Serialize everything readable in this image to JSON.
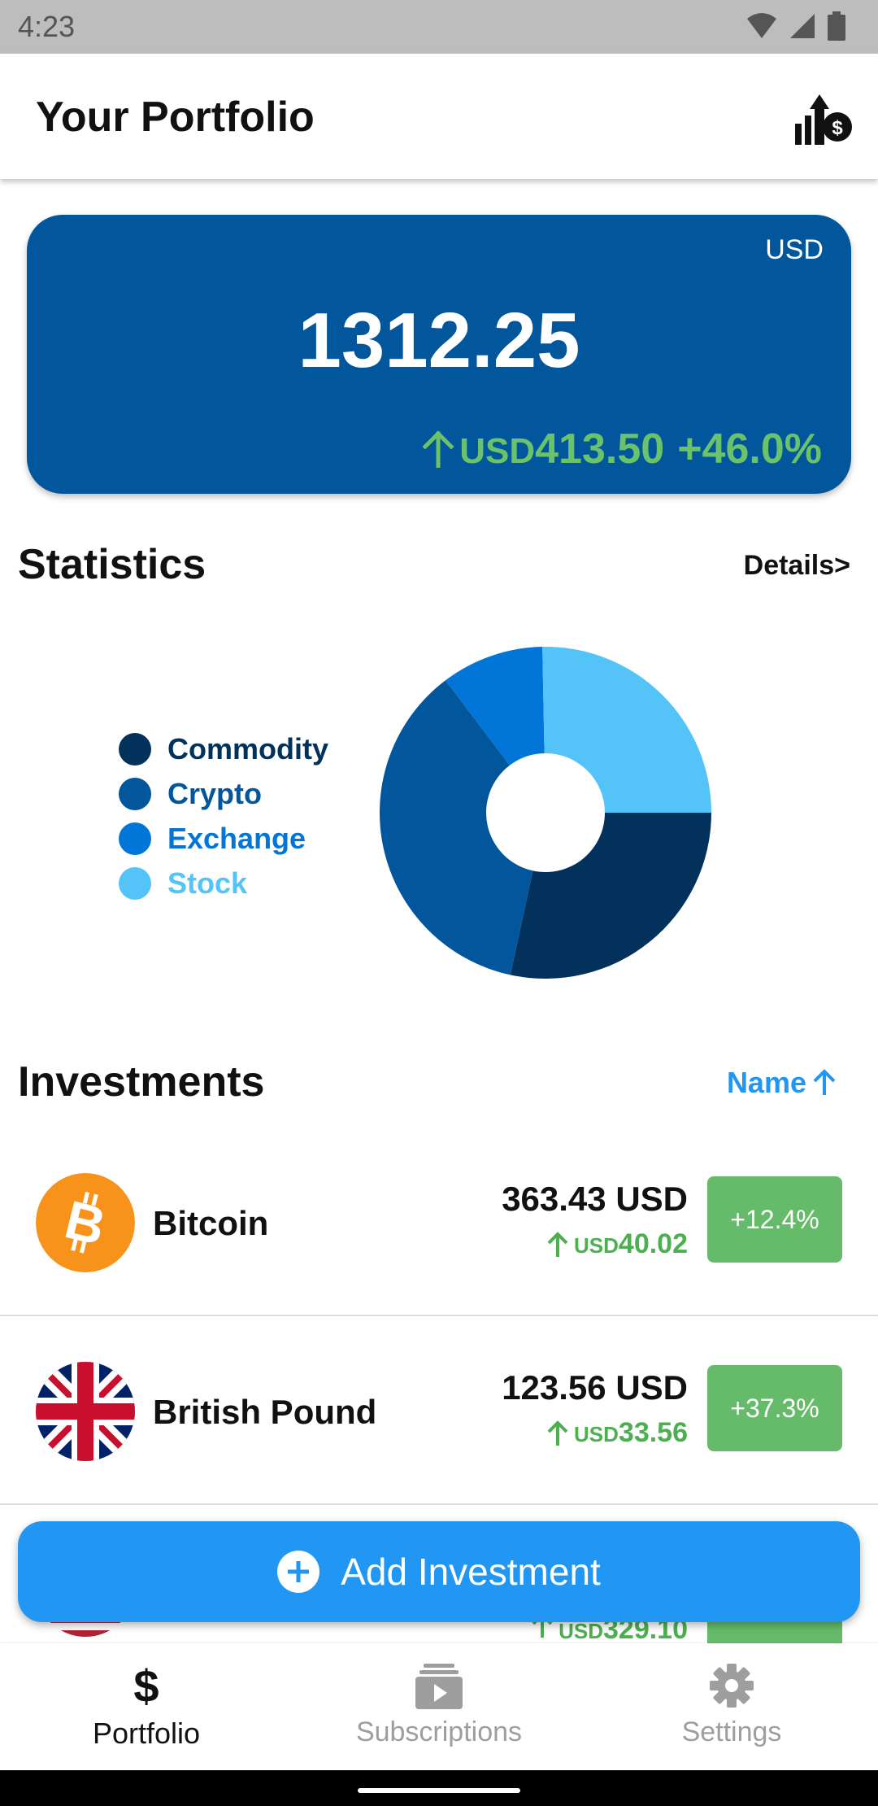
{
  "status_bar": {
    "time": "4:23"
  },
  "app_bar": {
    "title": "Your Portfolio",
    "action_icon": "portfolio-growth-dollar-icon"
  },
  "balance": {
    "currency": "USD",
    "amount": "1312.25",
    "change_currency": "USD",
    "change_amount": "413.50",
    "change_percent": "+46.0%"
  },
  "statistics": {
    "title": "Statistics",
    "details_label": "Details>"
  },
  "chart_data": {
    "type": "pie",
    "variant": "donut",
    "categories": [
      "Commodity",
      "Crypto",
      "Exchange",
      "Stock"
    ],
    "colors": [
      "#02325c",
      "#02569b",
      "#0175d8",
      "#54c4f8"
    ],
    "values": [
      28.4,
      36.3,
      10.0,
      25.3
    ],
    "legend_position": "left"
  },
  "investments": {
    "title": "Investments",
    "sort_label": "Name",
    "items": [
      {
        "name": "Bitcoin",
        "icon": "bitcoin-icon",
        "value": "363.43 USD",
        "change_currency": "USD",
        "change_amount": "40.02",
        "change_percent": "+12.4%"
      },
      {
        "name": "British Pound",
        "icon": "uk-flag-icon",
        "value": "123.56 USD",
        "change_currency": "USD",
        "change_amount": "33.56",
        "change_percent": "+37.3%"
      }
    ],
    "partial_item": {
      "change_currency": "USD",
      "change_amount": "329.10"
    }
  },
  "fab": {
    "label": "Add Investment"
  },
  "bottom_nav": {
    "items": [
      {
        "label": "Portfolio",
        "icon": "dollar-icon",
        "active": true
      },
      {
        "label": "Subscriptions",
        "icon": "subscriptions-icon",
        "active": false
      },
      {
        "label": "Settings",
        "icon": "gear-icon",
        "active": false
      }
    ]
  },
  "colors": {
    "card": "#02569b",
    "positive": "#4caf50",
    "accent": "#2196f3",
    "badge": "#66bb6a"
  }
}
